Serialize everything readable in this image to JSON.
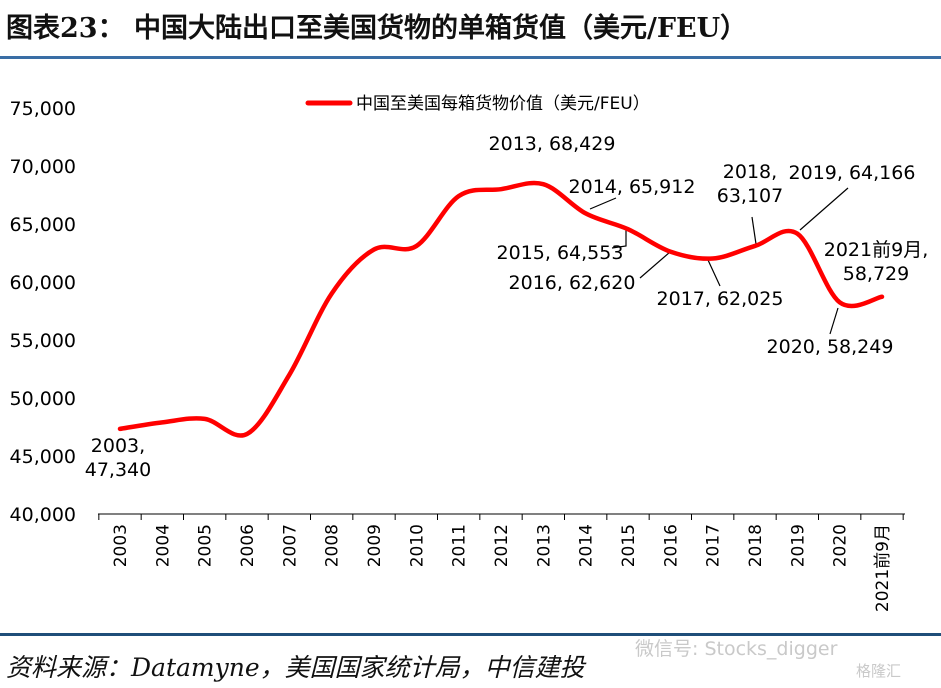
{
  "header": {
    "title": "图表23：   中国大陆出口至美国货物的单箱货值（美元/FEU）"
  },
  "footer": {
    "source": "资料来源：Datamyne，美国国家统计局，中信建投",
    "watermark": "微信号: Stocks_digger",
    "badge": "格隆汇"
  },
  "colors": {
    "series": "#ff0000",
    "rule_top": "#3a6ea5",
    "rule_bottom": "#1f4e79"
  },
  "chart_data": {
    "type": "line",
    "title": "",
    "xlabel": "",
    "ylabel": "",
    "ylim": [
      40000,
      75000
    ],
    "y_ticks": [
      "40,000",
      "45,000",
      "50,000",
      "55,000",
      "60,000",
      "65,000",
      "70,000",
      "75,000"
    ],
    "categories": [
      "2003",
      "2004",
      "2005",
      "2006",
      "2007",
      "2008",
      "2009",
      "2010",
      "2011",
      "2012",
      "2013",
      "2014",
      "2015",
      "2016",
      "2017",
      "2018",
      "2019",
      "2020",
      "2021前9月"
    ],
    "series": [
      {
        "name": "中国至美国每箱货物价值（美元/FEU）",
        "values": [
          47340,
          47900,
          48200,
          46900,
          52000,
          59000,
          62800,
          63100,
          67400,
          68000,
          68429,
          65912,
          64553,
          62620,
          62025,
          63107,
          64166,
          58249,
          58729
        ]
      }
    ],
    "legend": "top-center",
    "grid": false,
    "annotations": [
      {
        "index": 0,
        "lines": [
          "2003,",
          "47,340"
        ]
      },
      {
        "index": 10,
        "lines": [
          "2013, 68,429"
        ]
      },
      {
        "index": 11,
        "lines": [
          "2014, 65,912"
        ]
      },
      {
        "index": 12,
        "lines": [
          "2015, 64,553"
        ]
      },
      {
        "index": 13,
        "lines": [
          "2016, 62,620"
        ]
      },
      {
        "index": 14,
        "lines": [
          "2017, 62,025"
        ]
      },
      {
        "index": 15,
        "lines": [
          "2018,",
          "63,107"
        ]
      },
      {
        "index": 16,
        "lines": [
          "2019, 64,166"
        ]
      },
      {
        "index": 17,
        "lines": [
          "2020, 58,249"
        ]
      },
      {
        "index": 18,
        "lines": [
          "2021前9月,",
          "58,729"
        ]
      }
    ]
  }
}
